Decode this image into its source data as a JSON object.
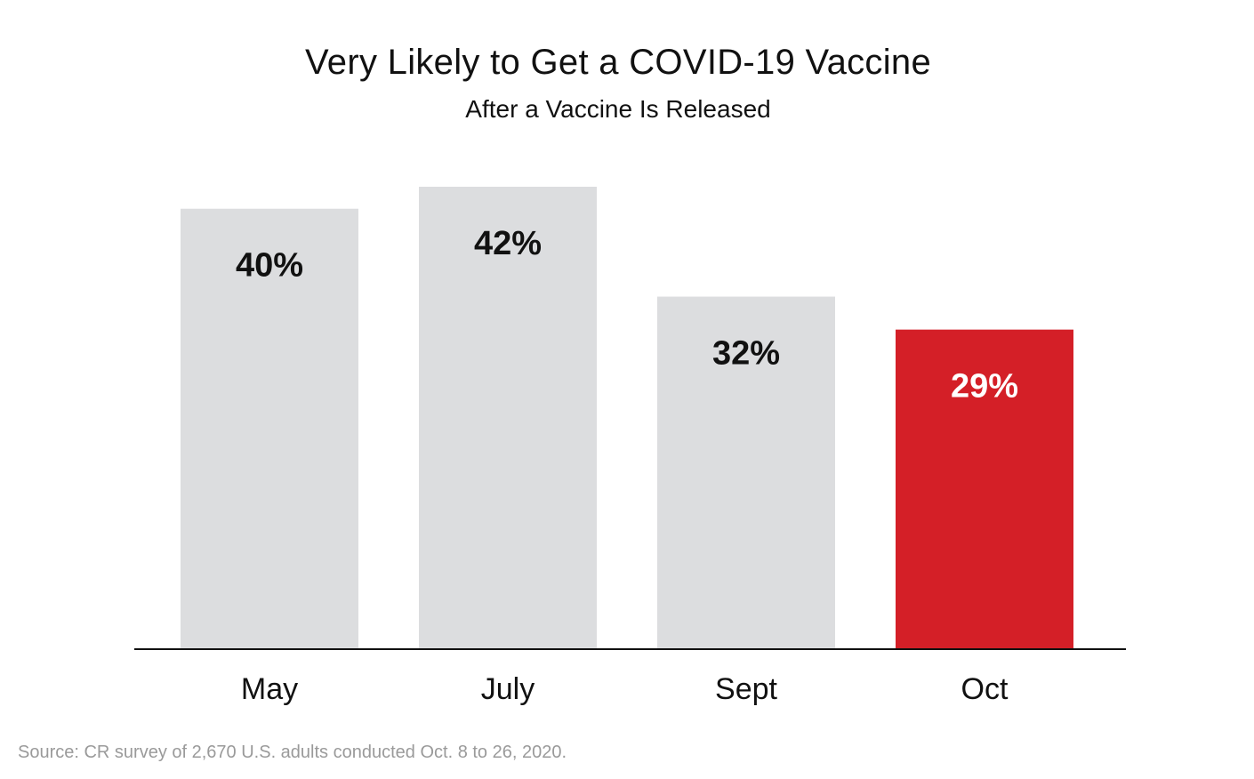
{
  "chart_data": {
    "type": "bar",
    "title": "Very Likely to Get a COVID-19 Vaccine",
    "subtitle": "After a Vaccine Is Released",
    "categories": [
      "May",
      "July",
      "Sept",
      "Oct"
    ],
    "values": [
      40,
      42,
      32,
      29
    ],
    "value_labels": [
      "40%",
      "42%",
      "32%",
      "29%"
    ],
    "unit": "%",
    "ylim": [
      0,
      42
    ],
    "grid": false,
    "legend": "none",
    "colors": {
      "default_bar": "#dcdddf",
      "highlight_bar": "#d41f27",
      "default_label": "#111111",
      "highlight_label": "#ffffff",
      "axis": "#111111"
    },
    "highlight_index": 3
  },
  "source": "Source: CR survey of 2,670 U.S. adults conducted Oct. 8 to 26, 2020."
}
